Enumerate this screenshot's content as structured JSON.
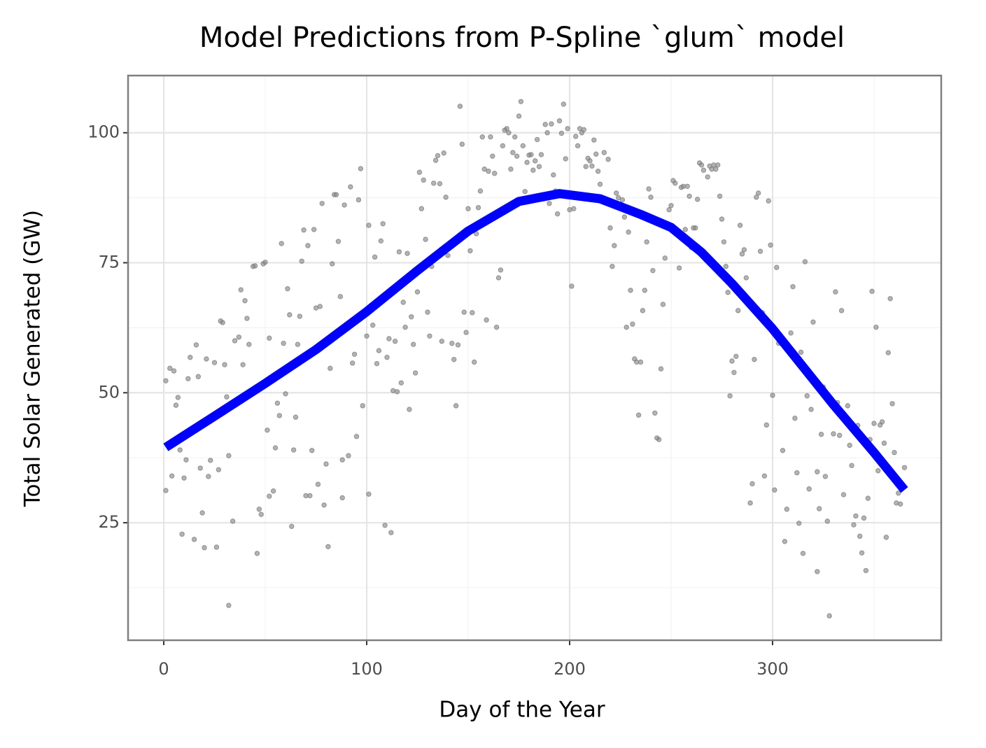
{
  "chart_data": {
    "type": "scatter",
    "title": "Model Predictions from P-Spline `glum` model",
    "x_label": "Day of the Year",
    "y_label": "Total Solar Generated (GW)",
    "xlim": [
      -17.6,
      383.1
    ],
    "ylim": [
      2.4,
      111.0
    ],
    "xticks": [
      0,
      100,
      200,
      300
    ],
    "yticks": [
      25,
      50,
      75,
      100
    ],
    "x_minor_ticks": [
      50,
      150,
      250,
      350
    ],
    "y_minor_ticks": [
      12.5,
      37.5,
      62.5,
      87.5
    ],
    "grid": true,
    "series": [
      {
        "type": "scatter",
        "color": "#808080",
        "x": [
          1,
          1,
          3,
          5,
          6,
          7,
          4,
          8,
          9,
          10,
          11,
          12,
          13,
          15,
          16,
          17,
          18,
          19,
          20,
          21,
          22,
          23,
          25,
          26,
          27,
          28,
          29,
          30,
          31,
          32,
          32,
          34,
          35,
          37,
          38,
          39,
          40,
          41,
          42,
          44,
          45,
          46,
          47,
          48,
          49,
          50,
          51,
          52,
          52,
          54,
          55,
          56,
          57,
          58,
          59,
          60,
          61,
          62,
          63,
          64,
          65,
          66,
          67,
          68,
          69,
          70,
          71,
          72,
          73,
          74,
          75,
          76,
          77,
          78,
          79,
          80,
          81,
          82,
          83,
          84,
          85,
          86,
          87,
          88,
          88,
          89,
          91,
          92,
          93,
          94,
          95,
          96,
          97,
          98,
          100,
          101,
          101,
          103,
          104,
          105,
          106,
          107,
          108,
          109,
          110,
          111,
          112,
          113,
          114,
          115,
          116,
          117,
          118,
          119,
          120,
          121,
          122,
          123,
          124,
          125,
          126,
          127,
          128,
          129,
          130,
          131,
          132,
          133,
          134,
          135,
          136,
          137,
          138,
          139,
          140,
          142,
          143,
          144,
          145,
          146,
          147,
          148,
          149,
          150,
          151,
          152,
          153,
          154,
          155,
          156,
          157,
          158,
          159,
          160,
          161,
          162,
          163,
          164,
          165,
          166,
          167,
          168,
          169,
          170,
          171,
          172,
          173,
          174,
          175,
          176,
          177,
          178,
          179,
          180,
          181,
          182,
          183,
          184,
          185,
          186,
          187,
          188,
          189,
          190,
          191,
          192,
          193,
          194,
          195,
          196,
          197,
          198,
          199,
          200,
          201,
          202,
          203,
          204,
          205,
          206,
          207,
          208,
          209,
          210,
          211,
          212,
          213,
          214,
          215,
          217,
          219,
          220,
          221,
          222,
          223,
          224,
          226,
          227,
          228,
          229,
          230,
          231,
          232,
          233,
          234,
          235,
          236,
          237,
          238,
          239,
          240,
          241,
          242,
          243,
          244,
          245,
          246,
          247,
          248,
          249,
          250,
          251,
          252,
          254,
          255,
          256,
          257,
          258,
          259,
          260,
          261,
          262,
          263,
          264,
          265,
          266,
          267,
          268,
          269,
          270,
          271,
          272,
          273,
          274,
          275,
          276,
          277,
          278,
          279,
          280,
          281,
          282,
          283,
          284,
          285,
          286,
          287,
          289,
          290,
          291,
          292,
          293,
          294,
          295,
          296,
          297,
          298,
          299,
          300,
          301,
          302,
          303,
          305,
          306,
          307,
          309,
          310,
          311,
          312,
          313,
          314,
          315,
          316,
          317,
          318,
          319,
          320,
          322,
          322,
          323,
          324,
          325,
          326,
          327,
          328,
          330,
          331,
          332,
          333,
          334,
          335,
          337,
          338,
          339,
          340,
          341,
          342,
          343,
          344,
          345,
          346,
          347,
          348,
          349,
          350,
          351,
          352,
          353,
          354,
          355,
          356,
          357,
          358,
          359,
          360,
          361,
          362,
          363,
          365
        ],
        "values": [
          31.2,
          52.3,
          54.7,
          54.2,
          47.6,
          49.1,
          34.0,
          39.0,
          22.8,
          33.6,
          37.1,
          52.7,
          56.8,
          21.8,
          59.2,
          53.1,
          35.5,
          26.9,
          20.2,
          56.5,
          33.9,
          37.0,
          55.8,
          20.3,
          35.2,
          63.8,
          63.5,
          55.4,
          49.2,
          37.9,
          9.1,
          25.3,
          60.0,
          60.7,
          69.8,
          55.4,
          67.7,
          64.3,
          59.3,
          74.3,
          74.4,
          19.1,
          27.6,
          26.6,
          74.8,
          75.1,
          42.8,
          60.5,
          30.1,
          31.1,
          39.4,
          48.0,
          45.6,
          78.7,
          59.5,
          49.8,
          70.0,
          65.0,
          24.3,
          39.0,
          45.3,
          59.3,
          64.7,
          75.3,
          81.3,
          30.2,
          78.3,
          30.2,
          38.9,
          81.4,
          66.3,
          32.4,
          66.6,
          86.4,
          28.4,
          36.3,
          20.4,
          54.7,
          74.8,
          88.1,
          88.1,
          79.1,
          68.5,
          29.8,
          37.1,
          86.1,
          37.9,
          89.6,
          55.7,
          57.4,
          41.6,
          87.1,
          93.1,
          47.5,
          60.9,
          82.2,
          30.5,
          63.0,
          76.1,
          55.6,
          58.1,
          79.2,
          82.5,
          24.5,
          56.8,
          60.4,
          23.1,
          50.4,
          59.9,
          50.2,
          77.1,
          51.9,
          67.4,
          62.6,
          76.8,
          46.8,
          64.6,
          59.3,
          53.8,
          69.4,
          92.4,
          85.4,
          90.9,
          79.5,
          65.5,
          60.9,
          74.3,
          90.3,
          94.7,
          95.6,
          90.2,
          59.9,
          96.1,
          87.6,
          76.4,
          59.5,
          56.4,
          47.5,
          59.2,
          105.1,
          97.8,
          65.5,
          61.6,
          85.4,
          77.3,
          65.4,
          55.9,
          80.6,
          85.6,
          88.8,
          99.2,
          93.0,
          64.0,
          92.6,
          99.2,
          95.5,
          92.2,
          62.6,
          72.1,
          73.6,
          97.5,
          100.5,
          100.8,
          100.0,
          93.0,
          96.2,
          99.2,
          95.5,
          103.2,
          106.0,
          97.5,
          88.7,
          94.3,
          95.7,
          95.8,
          92.8,
          94.6,
          98.7,
          93.5,
          95.8,
          87.5,
          101.6,
          100.0,
          86.4,
          101.7,
          91.9,
          88.8,
          84.4,
          102.3,
          99.9,
          105.5,
          95.0,
          100.8,
          85.2,
          70.5,
          85.4,
          99.3,
          97.5,
          100.8,
          100.0,
          100.6,
          93.5,
          95.1,
          94.6,
          93.6,
          98.6,
          95.9,
          92.6,
          90.1,
          96.2,
          94.9,
          81.7,
          74.3,
          78.3,
          88.4,
          87.5,
          87.1,
          83.8,
          62.6,
          80.9,
          69.7,
          63.2,
          56.5,
          55.9,
          45.7,
          55.9,
          65.8,
          69.7,
          79.0,
          89.2,
          87.6,
          73.5,
          46.1,
          41.3,
          41.0,
          54.6,
          67.0,
          75.9,
          82.5,
          85.2,
          86.0,
          90.8,
          90.3,
          74.0,
          89.5,
          89.7,
          81.4,
          89.7,
          87.8,
          77.9,
          81.7,
          81.7,
          87.2,
          94.2,
          93.8,
          92.8,
          75.6,
          91.5,
          93.6,
          93.0,
          93.8,
          93.0,
          93.8,
          87.8,
          83.4,
          79.0,
          74.3,
          69.3,
          49.4,
          56.1,
          53.9,
          57.0,
          65.8,
          82.2,
          76.7,
          77.5,
          72.1,
          28.8,
          32.5,
          56.4,
          87.6,
          88.4,
          77.2,
          65.4,
          34.0,
          43.8,
          86.9,
          78.4,
          49.5,
          31.3,
          74.1,
          59.5,
          38.9,
          21.4,
          27.6,
          61.5,
          70.4,
          45.1,
          34.6,
          24.9,
          57.8,
          19.1,
          75.2,
          49.4,
          31.5,
          46.8,
          63.6,
          34.8,
          15.6,
          27.7,
          42.0,
          51.1,
          33.9,
          25.3,
          7.1,
          42.1,
          69.4,
          48.1,
          41.8,
          65.8,
          30.4,
          47.5,
          39.9,
          36.0,
          24.6,
          26.3,
          43.7,
          22.4,
          19.2,
          25.9,
          15.8,
          29.7,
          41.0,
          69.5,
          44.1,
          62.6,
          35.0,
          43.8,
          44.4,
          40.3,
          22.2,
          57.7,
          68.1,
          47.9,
          38.5,
          28.8,
          30.7,
          28.6,
          35.6
        ]
      },
      {
        "type": "line",
        "color": "#0000ff",
        "x": [
          1,
          25,
          50,
          75,
          100,
          125,
          150,
          175,
          195,
          215,
          235,
          250,
          265,
          280,
          300,
          315,
          330,
          350,
          365
        ],
        "values": [
          39.5,
          45.5,
          51.8,
          58.3,
          65.6,
          73.5,
          81.1,
          86.8,
          88.3,
          87.3,
          84.3,
          81.8,
          77.0,
          71.0,
          62.3,
          55.0,
          47.7,
          38.5,
          31.3
        ]
      }
    ]
  }
}
